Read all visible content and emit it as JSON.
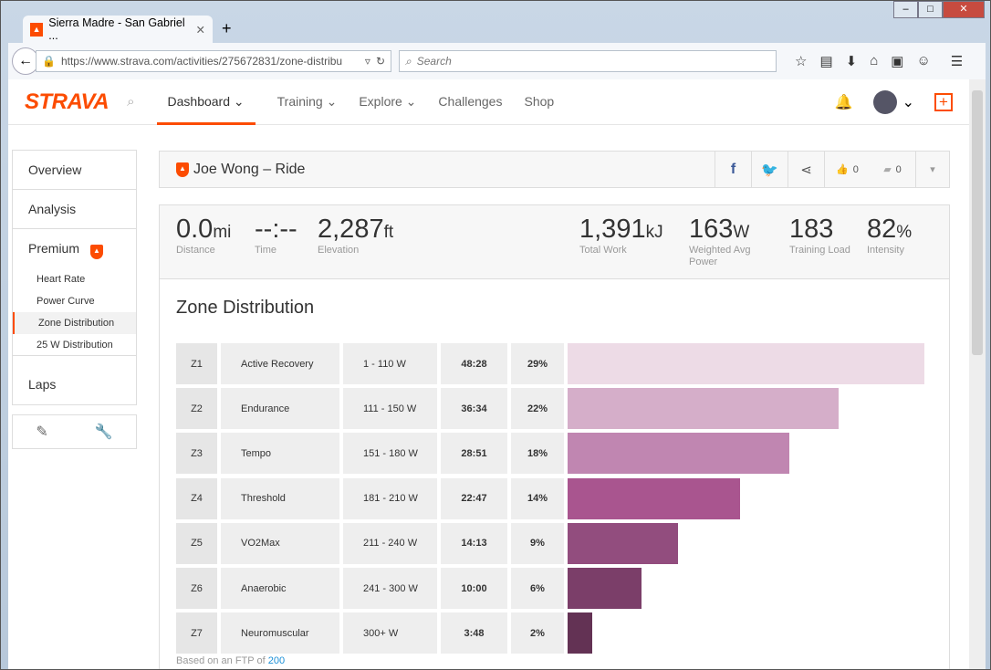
{
  "browser": {
    "tab_title": "Sierra Madre - San Gabriel ...",
    "url": "https://www.strava.com/activities/275672831/zone-distribu",
    "search_placeholder": "Search"
  },
  "nav": {
    "logo": "STRAVA",
    "items": [
      "Dashboard",
      "Training",
      "Explore",
      "Challenges",
      "Shop"
    ]
  },
  "sidebar": {
    "overview": "Overview",
    "analysis": "Analysis",
    "premium": "Premium",
    "sub": [
      "Heart Rate",
      "Power Curve",
      "Zone Distribution",
      "25 W Distribution"
    ],
    "laps": "Laps"
  },
  "header": {
    "title": "Joe Wong – Ride",
    "kudos": "0",
    "comments": "0"
  },
  "stats": [
    {
      "value": "0.0",
      "unit": "mi",
      "label": "Distance"
    },
    {
      "value": "--:--",
      "unit": "",
      "label": "Time"
    },
    {
      "value": "2,287",
      "unit": "ft",
      "label": "Elevation"
    },
    {
      "value": "1,391",
      "unit": "kJ",
      "label": "Total Work"
    },
    {
      "value": "163",
      "unit": "W",
      "label": "Weighted Avg Power"
    },
    {
      "value": "183",
      "unit": "",
      "label": "Training Load"
    },
    {
      "value": "82",
      "unit": "%",
      "label": "Intensity"
    }
  ],
  "zones": {
    "title": "Zone Distribution",
    "rows": [
      {
        "z": "Z1",
        "name": "Active Recovery",
        "range": "1 - 110 W",
        "time": "48:28",
        "pct": "29%",
        "value": 29,
        "color": "#eddbe6"
      },
      {
        "z": "Z2",
        "name": "Endurance",
        "range": "111 - 150 W",
        "time": "36:34",
        "pct": "22%",
        "value": 22,
        "color": "#d5aec9"
      },
      {
        "z": "Z3",
        "name": "Tempo",
        "range": "151 - 180 W",
        "time": "28:51",
        "pct": "18%",
        "value": 18,
        "color": "#c086b1"
      },
      {
        "z": "Z4",
        "name": "Threshold",
        "range": "181 - 210 W",
        "time": "22:47",
        "pct": "14%",
        "value": 14,
        "color": "#a9558f"
      },
      {
        "z": "Z5",
        "name": "VO2Max",
        "range": "211 - 240 W",
        "time": "14:13",
        "pct": "9%",
        "value": 9,
        "color": "#924d7e"
      },
      {
        "z": "Z6",
        "name": "Anaerobic",
        "range": "241 - 300 W",
        "time": "10:00",
        "pct": "6%",
        "value": 6,
        "color": "#7b3e69"
      },
      {
        "z": "Z7",
        "name": "Neuromuscular",
        "range": "300+ W",
        "time": "3:48",
        "pct": "2%",
        "value": 2,
        "color": "#633254"
      }
    ],
    "footnote": "Based on an FTP of",
    "ftp": "200"
  }
}
